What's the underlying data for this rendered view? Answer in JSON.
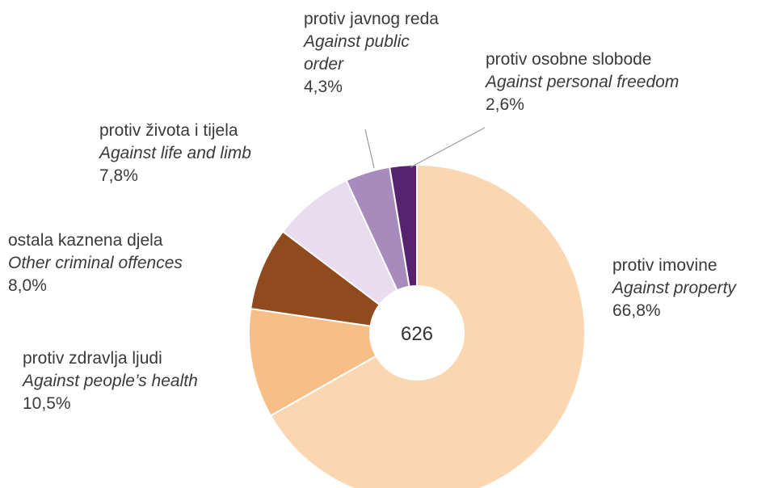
{
  "chart_data": {
    "type": "pie",
    "donut": true,
    "total_label": "626",
    "slices": [
      {
        "label_hr": "protiv imovine",
        "label_en": "Against property",
        "value": 66.8,
        "value_label": "66,8%",
        "color": "#fbd7b1"
      },
      {
        "label_hr": "protiv zdravlja ljudi",
        "label_en": "Against people’s health",
        "value": 10.5,
        "value_label": "10,5%",
        "color": "#f8be88"
      },
      {
        "label_hr": "ostala kaznena djela",
        "label_en": "Other criminal offences",
        "value": 8.0,
        "value_label": "8,0%",
        "color": "#8f4a1e"
      },
      {
        "label_hr": "protiv života i tijela",
        "label_en": "Against life and limb",
        "value": 7.8,
        "value_label": "7,8%",
        "color": "#e9dcef"
      },
      {
        "label_hr": "protiv javnog reda",
        "label_en_lines": [
          "Against public",
          "order"
        ],
        "value": 4.3,
        "value_label": "4,3%",
        "color": "#a78bbd"
      },
      {
        "label_hr": "protiv osobne slobode",
        "label_en": "Against personal freedom",
        "value": 2.6,
        "value_label": "2,6%",
        "color": "#55236f"
      }
    ]
  }
}
